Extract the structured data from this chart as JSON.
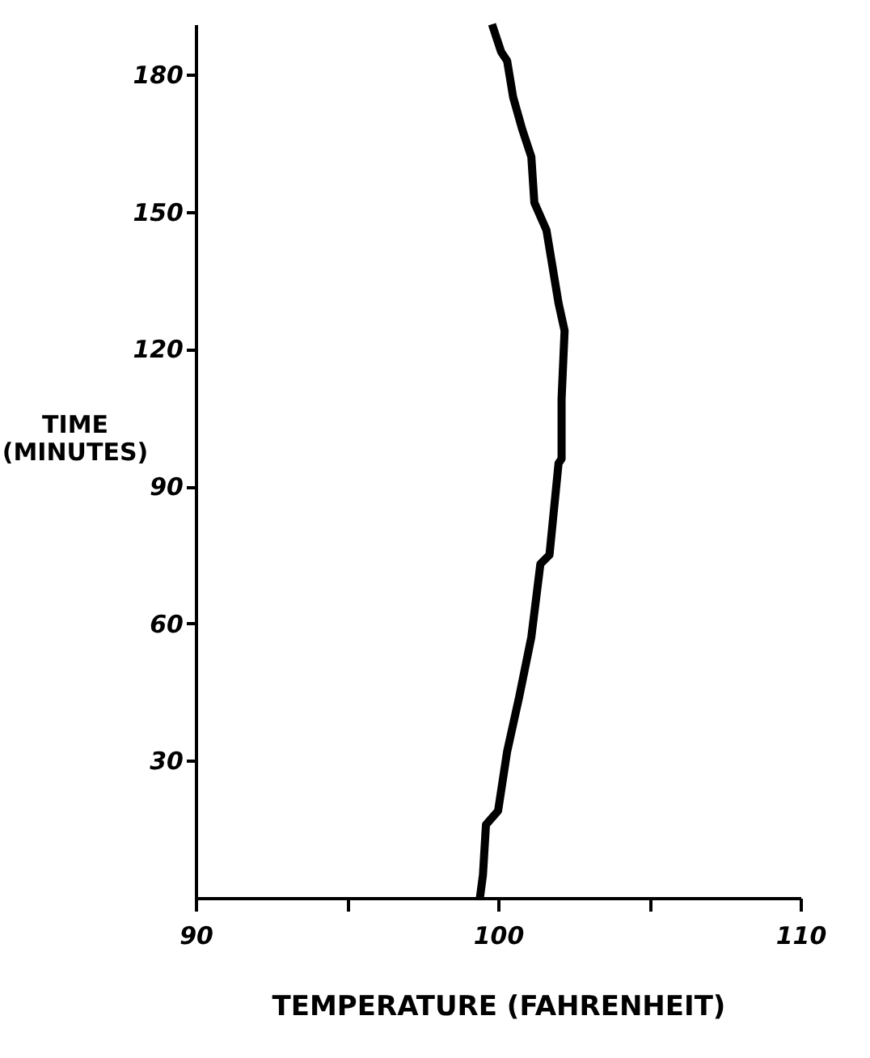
{
  "chart_data": {
    "type": "line",
    "xlabel": "TEMPERATURE  (FAHRENHEIT)",
    "ylabel": "TIME\n(MINUTES)",
    "x": [
      99.4,
      99.5,
      99.6,
      100.0,
      100.3,
      100.7,
      101.1,
      101.4,
      101.7,
      102.0,
      102.1,
      102.1,
      102.2,
      102.0,
      101.8,
      101.6,
      101.2,
      101.1,
      100.8,
      100.5,
      100.3,
      100.1,
      99.8
    ],
    "series": [
      {
        "color": "#000000",
        "values": [
          0,
          5,
          16,
          19,
          32,
          44,
          57,
          73,
          75,
          95,
          96,
          109,
          124,
          130,
          138,
          146,
          152,
          162,
          168,
          175,
          183,
          185,
          191
        ]
      }
    ],
    "xlim": [
      90,
      110
    ],
    "ylim": [
      0,
      191
    ],
    "xticks": [
      90,
      {
        "value": 95,
        "label": null
      },
      100,
      {
        "value": 105,
        "label": null
      },
      110
    ],
    "yticks": [
      30,
      60,
      90,
      120,
      150,
      180
    ],
    "grid": false,
    "marker": "none",
    "line_style": "solid"
  }
}
